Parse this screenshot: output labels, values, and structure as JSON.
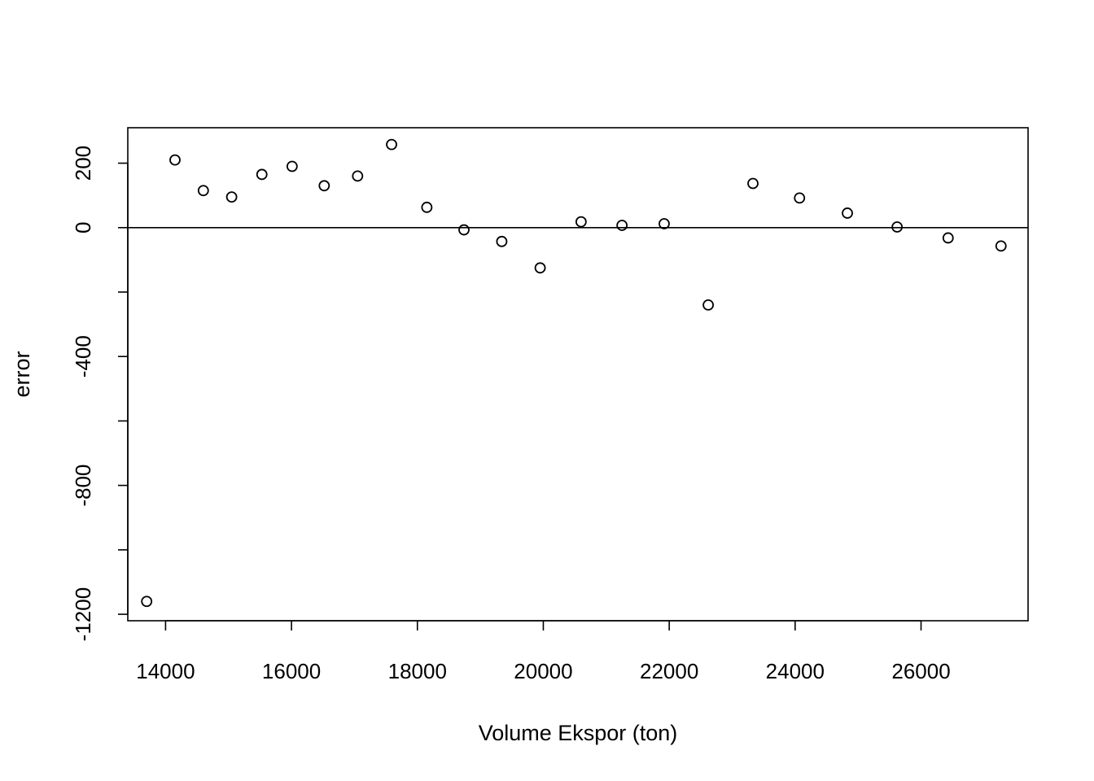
{
  "chart_data": {
    "type": "scatter",
    "title": "",
    "xlabel": "Volume Ekspor (ton)",
    "ylabel": "error",
    "xlim": [
      13400,
      27700
    ],
    "ylim": [
      -1220,
      310
    ],
    "xticks": [
      14000,
      16000,
      18000,
      20000,
      22000,
      24000,
      26000
    ],
    "yticks": [
      200,
      0,
      -400,
      -800,
      -1200
    ],
    "yticks_minor": [
      -200,
      -600,
      -1000
    ],
    "hline": 0,
    "grid": false,
    "legend": "none",
    "series": [
      {
        "marker": "open-circle",
        "color": "#000000",
        "x": [
          13700,
          14150,
          14600,
          15050,
          15530,
          16010,
          16520,
          17050,
          17590,
          18150,
          18740,
          19340,
          19950,
          20600,
          21250,
          21920,
          22620,
          23330,
          24070,
          24830,
          25620,
          26430,
          27270
        ],
        "y": [
          -1160,
          210,
          115,
          95,
          165,
          190,
          130,
          160,
          258,
          63,
          -7,
          -43,
          -125,
          18,
          7,
          12,
          -240,
          137,
          92,
          45,
          2,
          -32,
          -57
        ]
      }
    ]
  }
}
